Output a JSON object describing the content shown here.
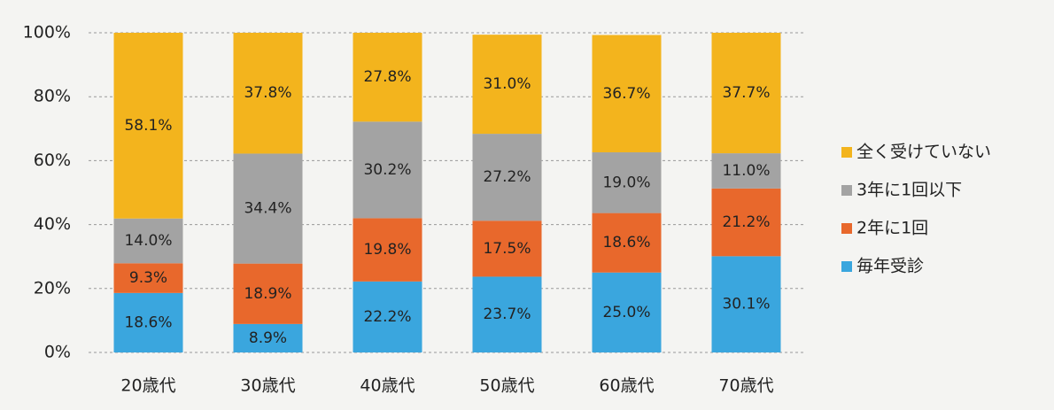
{
  "chart_data": {
    "type": "stacked_bar",
    "categories": [
      "20歳代",
      "30歳代",
      "40歳代",
      "50歳代",
      "60歳代",
      "70歳代"
    ],
    "series": [
      {
        "name": "毎年受診",
        "color": "#3aa6de",
        "values": [
          18.6,
          8.9,
          22.2,
          23.7,
          25.0,
          30.1
        ],
        "value_labels": [
          "18.6%",
          "8.9%",
          "22.2%",
          "23.7%",
          "25.0%",
          "30.1%"
        ]
      },
      {
        "name": "2年に1回",
        "color": "#e8682c",
        "values": [
          9.3,
          18.9,
          19.8,
          17.5,
          18.6,
          21.2
        ],
        "value_labels": [
          "9.3%",
          "18.9%",
          "19.8%",
          "17.5%",
          "18.6%",
          "21.2%"
        ]
      },
      {
        "name": "3年に1回以下",
        "color": "#a3a3a3",
        "values": [
          14.0,
          34.4,
          30.2,
          27.2,
          19.0,
          11.0
        ],
        "value_labels": [
          "14.0%",
          "34.4%",
          "30.2%",
          "27.2%",
          "19.0%",
          "11.0%"
        ]
      },
      {
        "name": "全く受けていない",
        "color": "#f3b41d",
        "values": [
          58.1,
          37.8,
          27.8,
          31.0,
          36.7,
          37.7
        ],
        "value_labels": [
          "58.1%",
          "37.8%",
          "27.8%",
          "31.0%",
          "36.7%",
          "37.7%"
        ]
      }
    ],
    "ylim": [
      0,
      100
    ],
    "yticks": [
      {
        "value": 0,
        "label": "0%"
      },
      {
        "value": 20,
        "label": "20%"
      },
      {
        "value": 40,
        "label": "40%"
      },
      {
        "value": 60,
        "label": "60%"
      },
      {
        "value": 80,
        "label": "80%"
      },
      {
        "value": 100,
        "label": "100%"
      }
    ],
    "grid": true,
    "legend": "right"
  }
}
